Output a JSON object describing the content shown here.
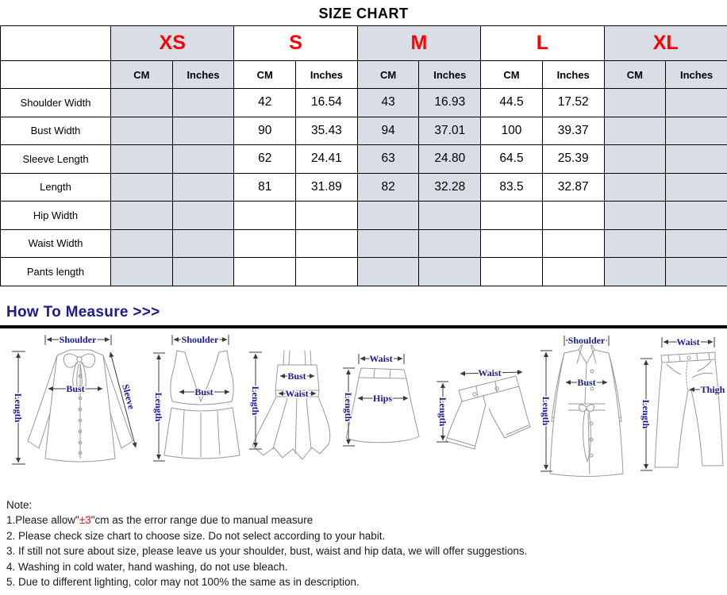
{
  "page_title": "SIZE CHART",
  "size_table": {
    "corner_label": "",
    "sizes": [
      {
        "label": "XS",
        "shaded": true
      },
      {
        "label": "S",
        "shaded": false
      },
      {
        "label": "M",
        "shaded": true
      },
      {
        "label": "L",
        "shaded": false
      },
      {
        "label": "XL",
        "shaded": true
      }
    ],
    "unit_headers": [
      "CM",
      "Inches"
    ],
    "rows": [
      {
        "label": "Shoulder Width",
        "values": [
          "",
          "",
          "42",
          "16.54",
          "43",
          "16.93",
          "44.5",
          "17.52",
          "",
          ""
        ]
      },
      {
        "label": "Bust Width",
        "values": [
          "",
          "",
          "90",
          "35.43",
          "94",
          "37.01",
          "100",
          "39.37",
          "",
          ""
        ]
      },
      {
        "label": "Sleeve Length",
        "values": [
          "",
          "",
          "62",
          "24.41",
          "63",
          "24.80",
          "64.5",
          "25.39",
          "",
          ""
        ]
      },
      {
        "label": "Length",
        "values": [
          "",
          "",
          "81",
          "31.89",
          "82",
          "32.28",
          "83.5",
          "32.87",
          "",
          ""
        ]
      },
      {
        "label": "Hip Width",
        "values": [
          "",
          "",
          "",
          "",
          "",
          "",
          "",
          "",
          "",
          ""
        ]
      },
      {
        "label": "Waist Width",
        "values": [
          "",
          "",
          "",
          "",
          "",
          "",
          "",
          "",
          "",
          ""
        ]
      },
      {
        "label": "Pants length",
        "values": [
          "",
          "",
          "",
          "",
          "",
          "",
          "",
          "",
          "",
          ""
        ]
      }
    ]
  },
  "measure": {
    "heading": "How To Measure >>>",
    "garments": [
      {
        "name": "blouse",
        "labels": {
          "shoulder": "Shoulder",
          "bust": "Bust",
          "length": "Length",
          "sleeve": "Sleeve"
        }
      },
      {
        "name": "tank-top",
        "labels": {
          "shoulder": "Shoulder",
          "bust": "Bust",
          "length": "Length"
        }
      },
      {
        "name": "dress",
        "labels": {
          "bust": "Bust",
          "waist": "Waist",
          "length": "Length"
        }
      },
      {
        "name": "skirt",
        "labels": {
          "waist": "Waist",
          "hips": "Hips",
          "length": "Length"
        }
      },
      {
        "name": "shorts",
        "labels": {
          "waist": "Waist",
          "length": "Length"
        }
      },
      {
        "name": "coat",
        "labels": {
          "shoulder": "Shoulder",
          "bust": "Bust",
          "length": "Length"
        }
      },
      {
        "name": "pants",
        "labels": {
          "waist": "Waist",
          "thigh": "Thigh",
          "length": "Length"
        }
      }
    ]
  },
  "notes": {
    "heading": "Note:",
    "line1": {
      "prefix": "1.Please allow\"",
      "highlight": "±3",
      "suffix": "\"cm as the error range due to manual measure"
    },
    "items": [
      "2. Please check size chart to choose size. Do not select according to your habit.",
      "3. If still not sure about size, please leave us your shoulder, bust, waist and hip data, we will offer suggestions.",
      "4. Washing in cold water, hand washing, do not use bleach.",
      "5. Due to different lighting, color may not 100% the same as in description."
    ]
  },
  "colors": {
    "size_red": "#ff0000",
    "navy": "#1b1b8f",
    "cell_shade": "#d9dde6",
    "table_border": "#000000",
    "sketch_line": "#999999",
    "dim_line": "#3a3a3a"
  }
}
